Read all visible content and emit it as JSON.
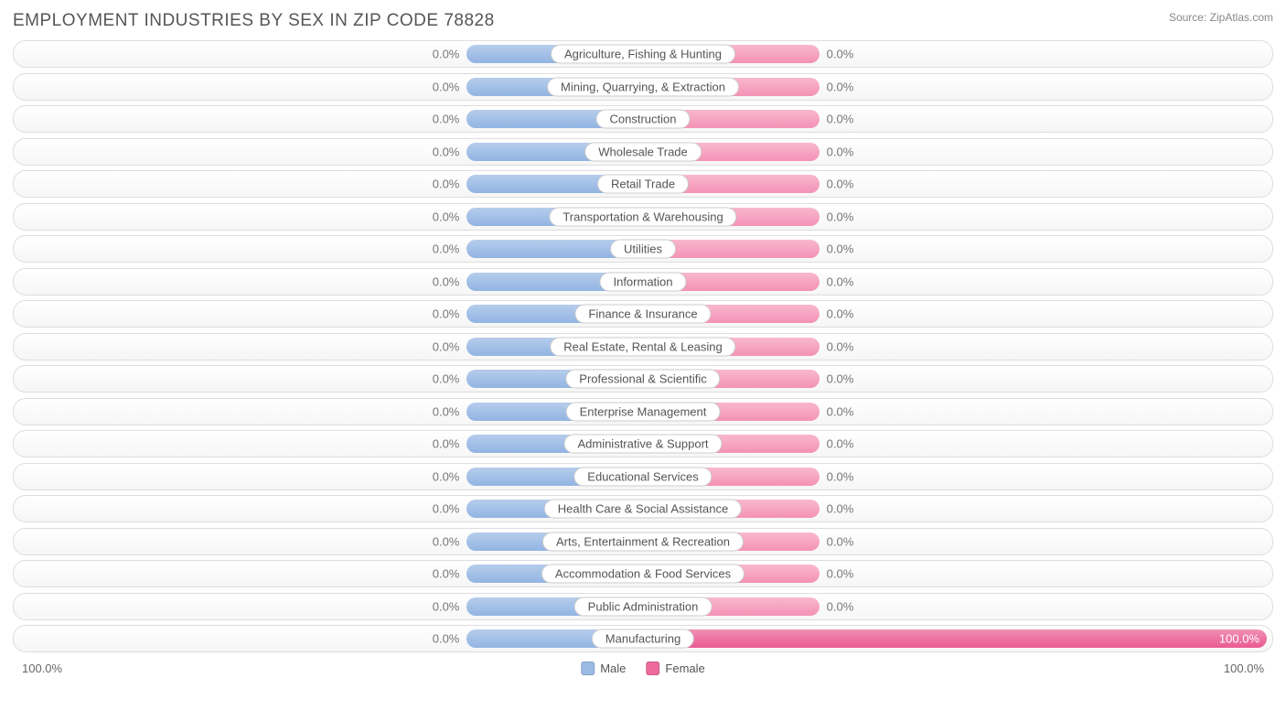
{
  "title": "EMPLOYMENT INDUSTRIES BY SEX IN ZIP CODE 78828",
  "source": "Source: ZipAtlas.com",
  "chart": {
    "type": "diverging-bar",
    "male_color": "#9bbae4",
    "female_color": "#f59fbd",
    "female_full_color": "#ec6a9c",
    "row_bg_top": "#ffffff",
    "row_bg_bottom": "#f6f6f6",
    "row_border": "#dddddd",
    "label_pill_bg": "#ffffff",
    "label_pill_border": "#cccccc",
    "text_color": "#555555",
    "value_text_color": "#777777",
    "min_bar_pct_when_zero": 28,
    "axis_max_label": "100.0%",
    "categories": [
      {
        "label": "Agriculture, Fishing & Hunting",
        "male": 0.0,
        "female": 0.0
      },
      {
        "label": "Mining, Quarrying, & Extraction",
        "male": 0.0,
        "female": 0.0
      },
      {
        "label": "Construction",
        "male": 0.0,
        "female": 0.0
      },
      {
        "label": "Wholesale Trade",
        "male": 0.0,
        "female": 0.0
      },
      {
        "label": "Retail Trade",
        "male": 0.0,
        "female": 0.0
      },
      {
        "label": "Transportation & Warehousing",
        "male": 0.0,
        "female": 0.0
      },
      {
        "label": "Utilities",
        "male": 0.0,
        "female": 0.0
      },
      {
        "label": "Information",
        "male": 0.0,
        "female": 0.0
      },
      {
        "label": "Finance & Insurance",
        "male": 0.0,
        "female": 0.0
      },
      {
        "label": "Real Estate, Rental & Leasing",
        "male": 0.0,
        "female": 0.0
      },
      {
        "label": "Professional & Scientific",
        "male": 0.0,
        "female": 0.0
      },
      {
        "label": "Enterprise Management",
        "male": 0.0,
        "female": 0.0
      },
      {
        "label": "Administrative & Support",
        "male": 0.0,
        "female": 0.0
      },
      {
        "label": "Educational Services",
        "male": 0.0,
        "female": 0.0
      },
      {
        "label": "Health Care & Social Assistance",
        "male": 0.0,
        "female": 0.0
      },
      {
        "label": "Arts, Entertainment & Recreation",
        "male": 0.0,
        "female": 0.0
      },
      {
        "label": "Accommodation & Food Services",
        "male": 0.0,
        "female": 0.0
      },
      {
        "label": "Public Administration",
        "male": 0.0,
        "female": 0.0
      },
      {
        "label": "Manufacturing",
        "male": 0.0,
        "female": 100.0
      }
    ],
    "legend": {
      "male": "Male",
      "female": "Female"
    }
  }
}
